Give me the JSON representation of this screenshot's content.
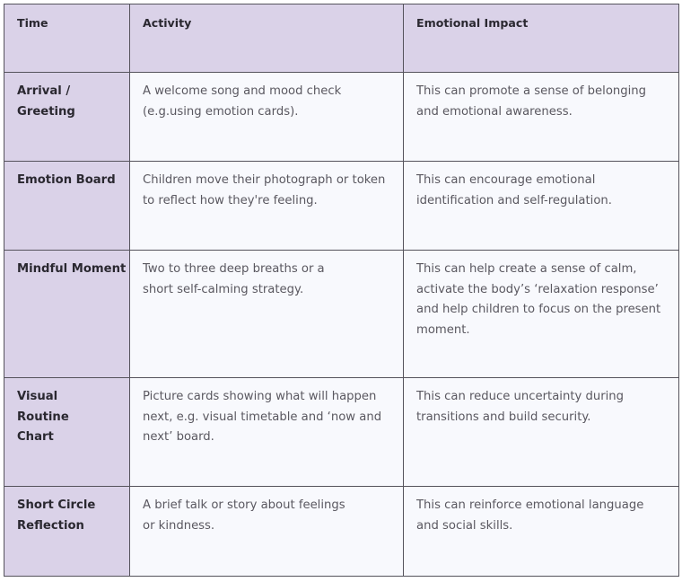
{
  "table": {
    "headers": {
      "time": "Time",
      "activity": "Activity",
      "impact": "Emotional Impact"
    },
    "rows": [
      {
        "time": "Arrival / Greeting",
        "activity": "A welcome song and mood check (e.g.using emotion cards).",
        "impact": "This can promote a sense of belonging and emotional awareness."
      },
      {
        "time": "Emotion Board",
        "activity": "Children move their photograph or token to reflect how they're feeling.",
        "impact": "This can encourage emotional identification and self-regulation."
      },
      {
        "time": "Mindful Moment",
        "activity": "Two to three deep breaths or a short self-calming strategy.",
        "impact": "This can help create a sense of calm, activate the body’s ‘relaxation response’ and help children to focus on the present moment."
      },
      {
        "time": "Visual Routine Chart",
        "activity": "Picture cards showing what will happen next, e.g. visual timetable and ‘now and next’ board.",
        "impact": "This can reduce uncertainty during transitions and build security."
      },
      {
        "time": "Short Circle Reflection",
        "activity": "A brief talk or story about feelings or kindness.",
        "impact": "This can reinforce emotional language and social skills."
      }
    ]
  },
  "colors": {
    "header_bg": "#dad2e8",
    "time_col_bg": "#dad2e8",
    "body_bg": "#f8f9fd",
    "border": "#55535c",
    "heading_text": "#2a2830",
    "body_text": "#5a5860"
  }
}
